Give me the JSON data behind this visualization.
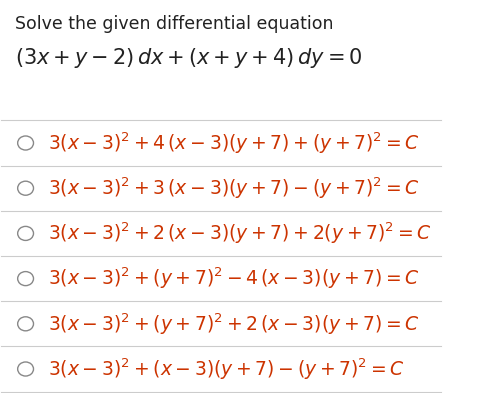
{
  "title": "Solve the given differential equation",
  "equation": "$(3x + y - 2)\\,dx + (x + y + 4)\\,dy = 0$",
  "options": [
    "$3(x-3)^2 + 4\\,(x-3)(y+7) + (y+7)^2 = C$",
    "$3(x-3)^2 + 3\\,(x-3)(y+7) - (y+7)^2 = C$",
    "$3(x-3)^2 + 2\\,(x-3)(y+7) + 2(y+7)^2 = C$",
    "$3(x-3)^2 + (y+7)^2 - 4\\,(x-3)(y+7) = C$",
    "$3(x-3)^2 + (y+7)^2 + 2\\,(x-3)(y+7) = C$",
    "$3(x-3)^2 + (x-3)(y+7) - (y+7)^2 = C$"
  ],
  "bg_color": "#ffffff",
  "title_color": "#222222",
  "eq_color": "#222222",
  "option_color": "#cc3300",
  "circle_color": "#888888",
  "line_color": "#cccccc",
  "title_fontsize": 12.5,
  "eq_fontsize": 15,
  "option_fontsize": 13.5
}
